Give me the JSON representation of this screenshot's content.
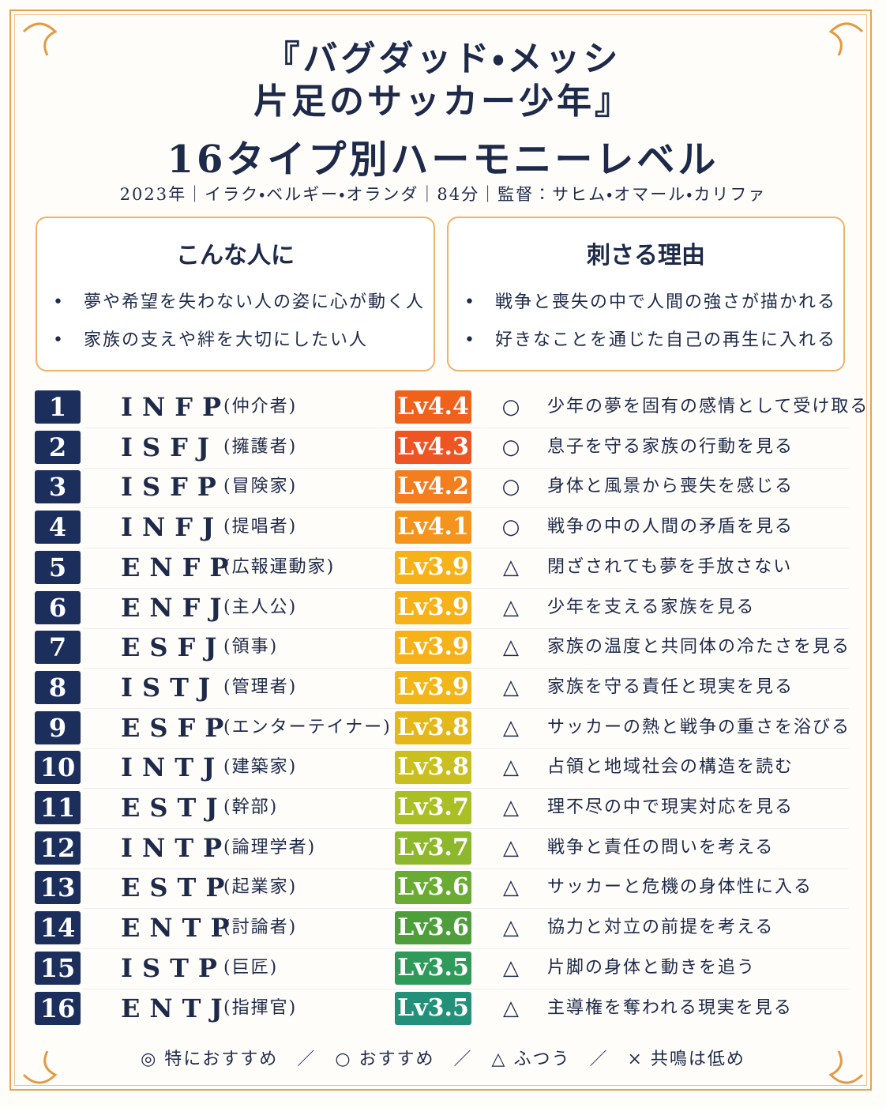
{
  "header": {
    "title_lines": [
      "『バグダッド・メッシ",
      "片足のサッカー少年』"
    ],
    "subtitle": "16タイプ別ハーモニーレベル",
    "meta": "2023年｜イラク・ベルギー・オランダ｜84分｜監督：サヒム・オマール・カリファ"
  },
  "boxes": [
    {
      "heading": "こんな人に",
      "items": [
        "夢や希望を失わない人の姿に心が動く人",
        "家族の支えや絆を大切にしたい人"
      ]
    },
    {
      "heading": "刺さる理由",
      "items": [
        "戦争と喪失の中で人間の強さが描かれる",
        "好きなことを通じた自己の再生に入れる"
      ]
    }
  ],
  "rows": [
    {
      "rank": "1",
      "type": "INFP",
      "role": "(仲介者)",
      "level": "Lv4.4",
      "color": "#f0621c",
      "mark": "○",
      "comment": "少年の夢を固有の感情として受け取る"
    },
    {
      "rank": "2",
      "type": "ISFJ",
      "role": "(擁護者)",
      "level": "Lv4.3",
      "color": "#ee5523",
      "mark": "○",
      "comment": "息子を守る家族の行動を見る"
    },
    {
      "rank": "3",
      "type": "ISFP",
      "role": "(冒険家)",
      "level": "Lv4.2",
      "color": "#f47e1f",
      "mark": "○",
      "comment": "身体と風景から喪失を感じる"
    },
    {
      "rank": "4",
      "type": "INFJ",
      "role": "(提唱者)",
      "level": "Lv4.1",
      "color": "#f5941d",
      "mark": "○",
      "comment": "戦争の中の人間の矛盾を見る"
    },
    {
      "rank": "5",
      "type": "ENFP",
      "role": "(広報運動家)",
      "level": "Lv3.9",
      "color": "#f7b21a",
      "mark": "△",
      "comment": "閉ざされても夢を手放さない"
    },
    {
      "rank": "6",
      "type": "ENFJ",
      "role": "(主人公)",
      "level": "Lv3.9",
      "color": "#f7b21a",
      "mark": "△",
      "comment": "少年を支える家族を見る"
    },
    {
      "rank": "7",
      "type": "ESFJ",
      "role": "(領事)",
      "level": "Lv3.9",
      "color": "#f7b21a",
      "mark": "△",
      "comment": "家族の温度と共同体の冷たさを見る"
    },
    {
      "rank": "8",
      "type": "ISTJ",
      "role": "(管理者)",
      "level": "Lv3.9",
      "color": "#f3b619",
      "mark": "△",
      "comment": "家族を守る責任と現実を見る"
    },
    {
      "rank": "9",
      "type": "ESFP",
      "role": "(エンターテイナー)",
      "level": "Lv3.8",
      "color": "#e4b81a",
      "mark": "△",
      "comment": "サッカーの熱と戦争の重さを浴びる"
    },
    {
      "rank": "10",
      "type": "INTJ",
      "role": "(建築家)",
      "level": "Lv3.8",
      "color": "#c9bf1f",
      "mark": "△",
      "comment": "占領と地域社会の構造を読む"
    },
    {
      "rank": "11",
      "type": "ESTJ",
      "role": "(幹部)",
      "level": "Lv3.7",
      "color": "#aabf24",
      "mark": "△",
      "comment": "理不尽の中で現実対応を見る"
    },
    {
      "rank": "12",
      "type": "INTP",
      "role": "(論理学者)",
      "level": "Lv3.7",
      "color": "#8db82b",
      "mark": "△",
      "comment": "戦争と責任の問いを考える"
    },
    {
      "rank": "13",
      "type": "ESTP",
      "role": "(起業家)",
      "level": "Lv3.6",
      "color": "#6aab33",
      "mark": "△",
      "comment": "サッカーと危機の身体性に入る"
    },
    {
      "rank": "14",
      "type": "ENTP",
      "role": "(討論者)",
      "level": "Lv3.6",
      "color": "#4e9f3b",
      "mark": "△",
      "comment": "協力と対立の前提を考える"
    },
    {
      "rank": "15",
      "type": "ISTP",
      "role": "(巨匠)",
      "level": "Lv3.5",
      "color": "#2f9a5a",
      "mark": "△",
      "comment": "片脚の身体と動きを追う"
    },
    {
      "rank": "16",
      "type": "ENTJ",
      "role": "(指揮官)",
      "level": "Lv3.5",
      "color": "#23907a",
      "mark": "△",
      "comment": "主導権を奪われる現実を見る"
    }
  ],
  "legend": [
    "◎ 特におすすめ",
    "○ おすすめ",
    "△ ふつう",
    "× 共鳴は低め"
  ]
}
